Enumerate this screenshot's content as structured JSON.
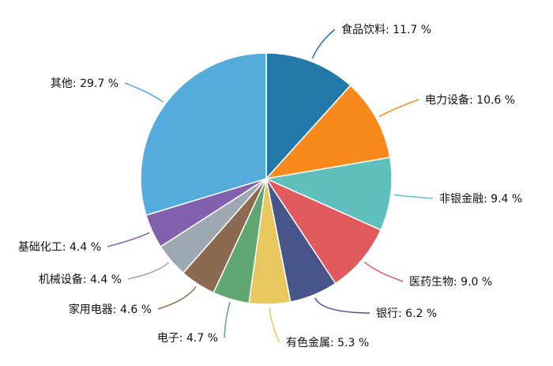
{
  "chart_data": {
    "type": "pie",
    "title": "",
    "unit": "%",
    "slices": [
      {
        "name": "食品饮料",
        "value": 11.7,
        "label": "食品饮料: 11.7 %",
        "color": "#2278a8"
      },
      {
        "name": "电力设备",
        "value": 10.6,
        "label": "电力设备: 10.6 %",
        "color": "#f7891d"
      },
      {
        "name": "非银金融",
        "value": 9.4,
        "label": "非银金融: 9.4 %",
        "color": "#5fbfbd"
      },
      {
        "name": "医药生物",
        "value": 9.0,
        "label": "医药生物: 9.0 %",
        "color": "#e15b5e"
      },
      {
        "name": "银行",
        "value": 6.2,
        "label": "银行: 6.2 %",
        "color": "#47558a"
      },
      {
        "name": "有色金属",
        "value": 5.3,
        "label": "有色金属: 5.3 %",
        "color": "#e8c75e"
      },
      {
        "name": "电子",
        "value": 4.7,
        "label": "电子: 4.7 %",
        "color": "#5fa670"
      },
      {
        "name": "家用电器",
        "value": 4.6,
        "label": "家用电器: 4.6 %",
        "color": "#8c6a52"
      },
      {
        "name": "机械设备",
        "value": 4.4,
        "label": "机械设备: 4.4 %",
        "color": "#9ea8b2"
      },
      {
        "name": "基础化工",
        "value": 4.4,
        "label": "基础化工: 4.4 %",
        "color": "#8160ae"
      },
      {
        "name": "其他",
        "value": 29.7,
        "label": "其他: 29.7 %",
        "color": "#54acdc"
      }
    ]
  }
}
